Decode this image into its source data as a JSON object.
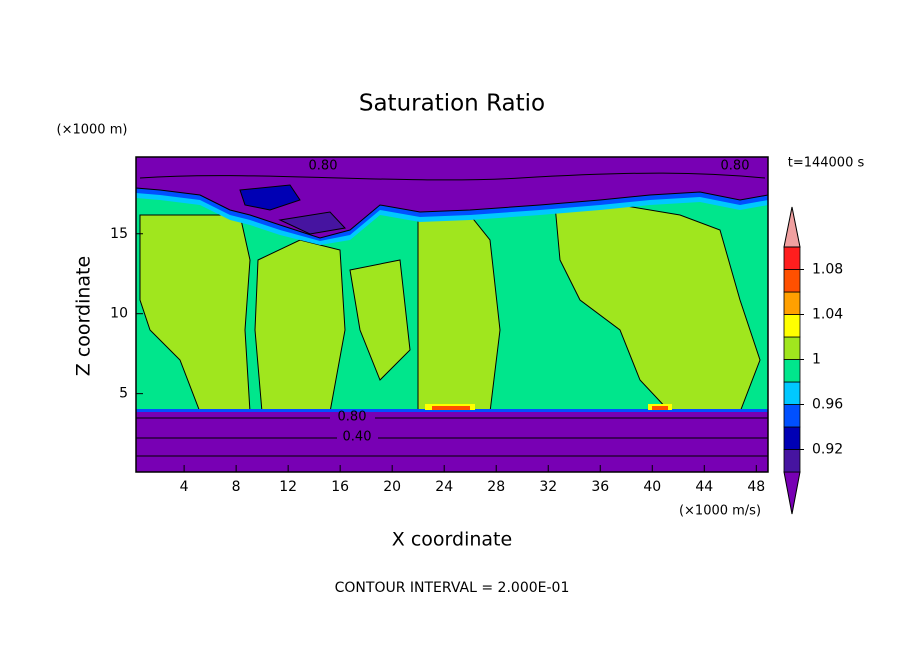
{
  "chart_data": {
    "type": "contour",
    "title": "Saturation Ratio",
    "x_label": "X coordinate",
    "y_label": "Z coordinate",
    "x_unit": "(×1000 m/s)",
    "y_unit": "(×1000 m)",
    "time_label": "t=144000 s",
    "footer": "CONTOUR INTERVAL = 2.000E-01",
    "contour_labels": [
      "0.80",
      "0.80",
      "0.80",
      "0.40"
    ],
    "xlim": [
      0.3,
      48.9
    ],
    "xticks": [
      4,
      8,
      12,
      16,
      20,
      24,
      28,
      32,
      36,
      40,
      44,
      48
    ],
    "ylim": [
      0.1,
      19.8
    ],
    "yticks": [
      5,
      10,
      15
    ],
    "colorbar": {
      "levels": [
        0.9,
        0.92,
        0.94,
        0.96,
        0.98,
        1,
        1.02,
        1.04,
        1.06,
        1.08,
        1.1
      ],
      "colors": [
        "#7800b4",
        "#4614a0",
        "#0000b4",
        "#0050ff",
        "#00c8ff",
        "#00e68c",
        "#a0e61e",
        "#ffff00",
        "#ffa000",
        "#ff5000",
        "#ff1e1e",
        "#f0a0a0"
      ],
      "ticks": [
        0.92,
        0.96,
        1,
        1.04,
        1.08
      ]
    }
  }
}
